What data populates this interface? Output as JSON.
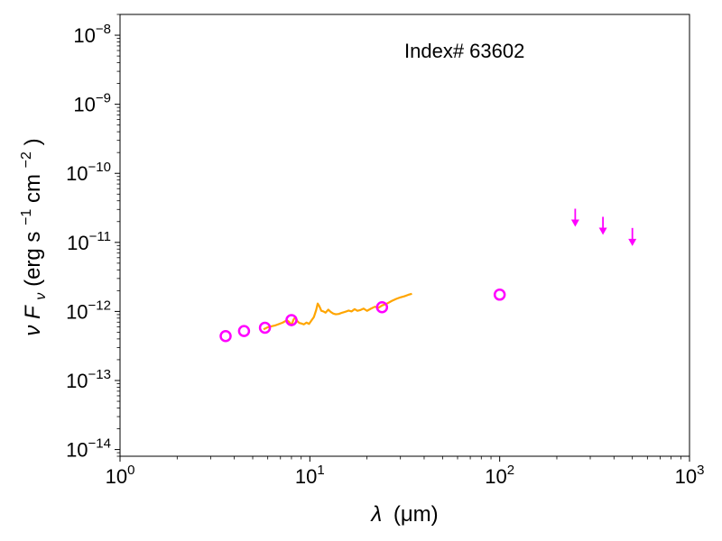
{
  "chart_data": {
    "type": "scatter",
    "annotation": "Index# 63602",
    "xlabel": {
      "greek": "λ",
      "unit": "(μm)"
    },
    "ylabel": {
      "greek": "ν",
      "var": "F",
      "sub": "ν",
      "unit_open": " (erg s",
      "exp1": "−1",
      "unit_mid": " cm",
      "exp2": "−2",
      "unit_close": ")"
    },
    "x_scale": "log",
    "y_scale": "log",
    "xlim": [
      1,
      1000
    ],
    "ylim": [
      8e-15,
      2e-08
    ],
    "x_ticks": [
      {
        "value": 1,
        "base": "10",
        "exp": "0"
      },
      {
        "value": 10,
        "base": "10",
        "exp": "1"
      },
      {
        "value": 100,
        "base": "10",
        "exp": "2"
      },
      {
        "value": 1000,
        "base": "10",
        "exp": "3"
      }
    ],
    "y_ticks": [
      {
        "value": 1e-14,
        "base": "10",
        "exp": "−14"
      },
      {
        "value": 1e-13,
        "base": "10",
        "exp": "−13"
      },
      {
        "value": 1e-12,
        "base": "10",
        "exp": "−12"
      },
      {
        "value": 1e-11,
        "base": "10",
        "exp": "−11"
      },
      {
        "value": 1e-10,
        "base": "10",
        "exp": "−10"
      },
      {
        "value": 1e-09,
        "base": "10",
        "exp": "−9"
      },
      {
        "value": 1e-08,
        "base": "10",
        "exp": "−8"
      }
    ],
    "colors": {
      "photometry": "#ff00ff",
      "spectrum": "#ffa500",
      "axes": "#000000"
    },
    "photometry": [
      {
        "x": 3.6,
        "y": 4.4e-13
      },
      {
        "x": 4.5,
        "y": 5.2e-13
      },
      {
        "x": 5.8,
        "y": 5.8e-13
      },
      {
        "x": 8.0,
        "y": 7.5e-13
      },
      {
        "x": 24,
        "y": 1.15e-12
      },
      {
        "x": 100,
        "y": 1.75e-12
      }
    ],
    "upper_limits": [
      {
        "x": 250,
        "y": 1.9e-11
      },
      {
        "x": 350,
        "y": 1.45e-11
      },
      {
        "x": 500,
        "y": 1e-11
      }
    ],
    "spectrum": [
      [
        5.7,
        5.5e-13
      ],
      [
        6.0,
        5.9e-13
      ],
      [
        6.3,
        6.1e-13
      ],
      [
        6.6,
        6.3e-13
      ],
      [
        6.9,
        6.6e-13
      ],
      [
        7.2,
        6.9e-13
      ],
      [
        7.4,
        7.2e-13
      ],
      [
        7.6,
        7.4e-13
      ],
      [
        7.8,
        7e-13
      ],
      [
        8.0,
        6.3e-13
      ],
      [
        8.2,
        7.6e-13
      ],
      [
        8.4,
        8.3e-13
      ],
      [
        8.6,
        7.2e-13
      ],
      [
        8.8,
        6.8e-13
      ],
      [
        9.0,
        6.7e-13
      ],
      [
        9.3,
        6.5e-13
      ],
      [
        9.6,
        6.9e-13
      ],
      [
        9.9,
        6.6e-13
      ],
      [
        10.2,
        7.4e-13
      ],
      [
        10.5,
        8.3e-13
      ],
      [
        10.8,
        1.05e-12
      ],
      [
        11.0,
        1.3e-12
      ],
      [
        11.2,
        1.2e-12
      ],
      [
        11.5,
        1.02e-12
      ],
      [
        11.8,
        1e-12
      ],
      [
        12.1,
        9.6e-13
      ],
      [
        12.5,
        1.06e-12
      ],
      [
        12.9,
        9.8e-13
      ],
      [
        13.3,
        9.3e-13
      ],
      [
        13.7,
        9.1e-13
      ],
      [
        14.2,
        9.2e-13
      ],
      [
        14.8,
        9.6e-13
      ],
      [
        15.4,
        9.9e-13
      ],
      [
        16.0,
        1.03e-12
      ],
      [
        16.6,
        1e-12
      ],
      [
        17.2,
        1.08e-12
      ],
      [
        17.8,
        1.02e-12
      ],
      [
        18.5,
        1.05e-12
      ],
      [
        19.2,
        1.1e-12
      ],
      [
        20.0,
        1.02e-12
      ],
      [
        21.0,
        1.1e-12
      ],
      [
        22.0,
        1.17e-12
      ],
      [
        23.0,
        1.13e-12
      ],
      [
        24.0,
        1.22e-12
      ],
      [
        25.5,
        1.3e-12
      ],
      [
        27.0,
        1.42e-12
      ],
      [
        28.5,
        1.52e-12
      ],
      [
        30.0,
        1.6e-12
      ],
      [
        31.5,
        1.66e-12
      ],
      [
        33.0,
        1.74e-12
      ],
      [
        34.5,
        1.8e-12
      ]
    ]
  }
}
